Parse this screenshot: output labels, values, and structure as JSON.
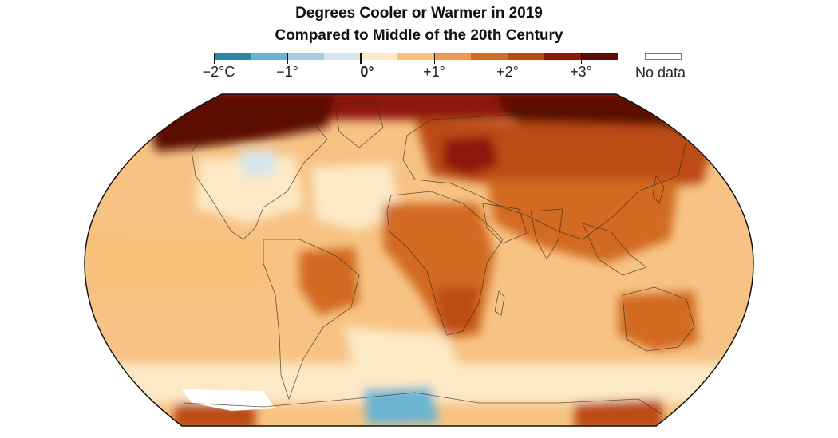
{
  "title": {
    "line1": "Degrees Cooler or Warmer in 2019",
    "line2": "Compared to Middle of the 20th Century"
  },
  "legend": {
    "bins": [
      {
        "color": "#2a88a8"
      },
      {
        "color": "#6ab4d2"
      },
      {
        "color": "#a8cfe0"
      },
      {
        "color": "#d8e6ec"
      },
      {
        "color": "#fde9c6"
      },
      {
        "color": "#f9c07a"
      },
      {
        "color": "#ee9a4f"
      },
      {
        "color": "#d26a23"
      },
      {
        "color": "#bc4b12"
      },
      {
        "color": "#8e1808"
      },
      {
        "color": "#5c0b04"
      }
    ],
    "labels": [
      {
        "text": "−2°C",
        "value": -2
      },
      {
        "text": "−1°",
        "value": -1
      },
      {
        "text": "0°",
        "value": 0
      },
      {
        "text": "+1°",
        "value": 1
      },
      {
        "text": "+2°",
        "value": 2
      },
      {
        "text": "+3°",
        "value": 3
      }
    ],
    "no_data_label": "No data",
    "no_data_color": "#ffffff"
  },
  "map": {
    "projection": "Robinson",
    "base_color": "#f7c384",
    "outline_color": "#111111",
    "regions": [
      {
        "name": "arctic-band",
        "color": "#8e1808"
      },
      {
        "name": "north-america-arctic",
        "color": "#5c0b04"
      },
      {
        "name": "siberia-arctic",
        "color": "#5c0b04"
      },
      {
        "name": "europe-russia",
        "color": "#bc4b12"
      },
      {
        "name": "eastern-europe-hotspot",
        "color": "#8e1808"
      },
      {
        "name": "asia",
        "color": "#d26a23"
      },
      {
        "name": "north-atlantic",
        "color": "#fde9c6"
      },
      {
        "name": "north-america-cool",
        "color": "#fde9c6"
      },
      {
        "name": "canada-cool",
        "color": "#d8e6ec"
      },
      {
        "name": "africa",
        "color": "#d26a23"
      },
      {
        "name": "southern-africa",
        "color": "#bc4b12"
      },
      {
        "name": "brazil",
        "color": "#d26a23"
      },
      {
        "name": "australia",
        "color": "#d26a23"
      },
      {
        "name": "equatorial-pacific",
        "color": "#f9c07a"
      },
      {
        "name": "south-atlantic",
        "color": "#fde9c6"
      },
      {
        "name": "southern-ocean",
        "color": "#fde9c6"
      },
      {
        "name": "antarctic-cool",
        "color": "#6ab4d2"
      },
      {
        "name": "antarctic-warm",
        "color": "#bc4b12"
      },
      {
        "name": "antarctic-nodata",
        "color": "#ffffff"
      }
    ]
  }
}
